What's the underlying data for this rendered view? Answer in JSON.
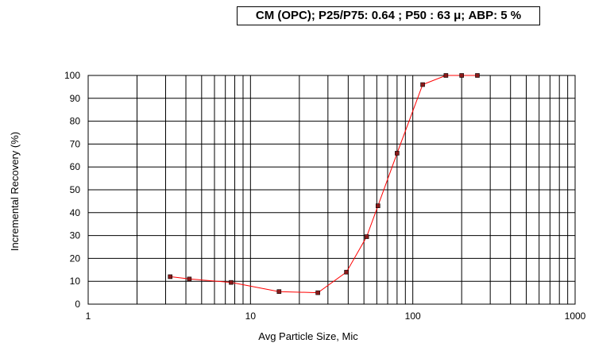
{
  "chart_data": {
    "type": "line",
    "title": "CM (OPC); P25/P75: 0.64  ; P50 : 63 μ; ABP: 5 %",
    "xlabel": "Avg Particle Size, Mic",
    "ylabel": "Incremental Recovery (%)",
    "x_scale": "log",
    "xlim": [
      1,
      1000
    ],
    "ylim": [
      0,
      100
    ],
    "x_ticks": [
      1,
      10,
      100,
      1000
    ],
    "y_ticks": [
      0,
      10,
      20,
      30,
      40,
      50,
      60,
      70,
      80,
      90,
      100
    ],
    "grid": true,
    "legend": "none",
    "series": [
      {
        "x": [
          3.2,
          4.2,
          7.6,
          15,
          26,
          39,
          52,
          61,
          80,
          115,
          160,
          200,
          250
        ],
        "y": [
          12,
          11,
          9.5,
          5.5,
          5,
          14,
          29.5,
          43,
          66,
          96,
          100,
          100,
          100
        ],
        "color": "#ff0000",
        "marker_color": "#8b1a1a"
      }
    ]
  }
}
